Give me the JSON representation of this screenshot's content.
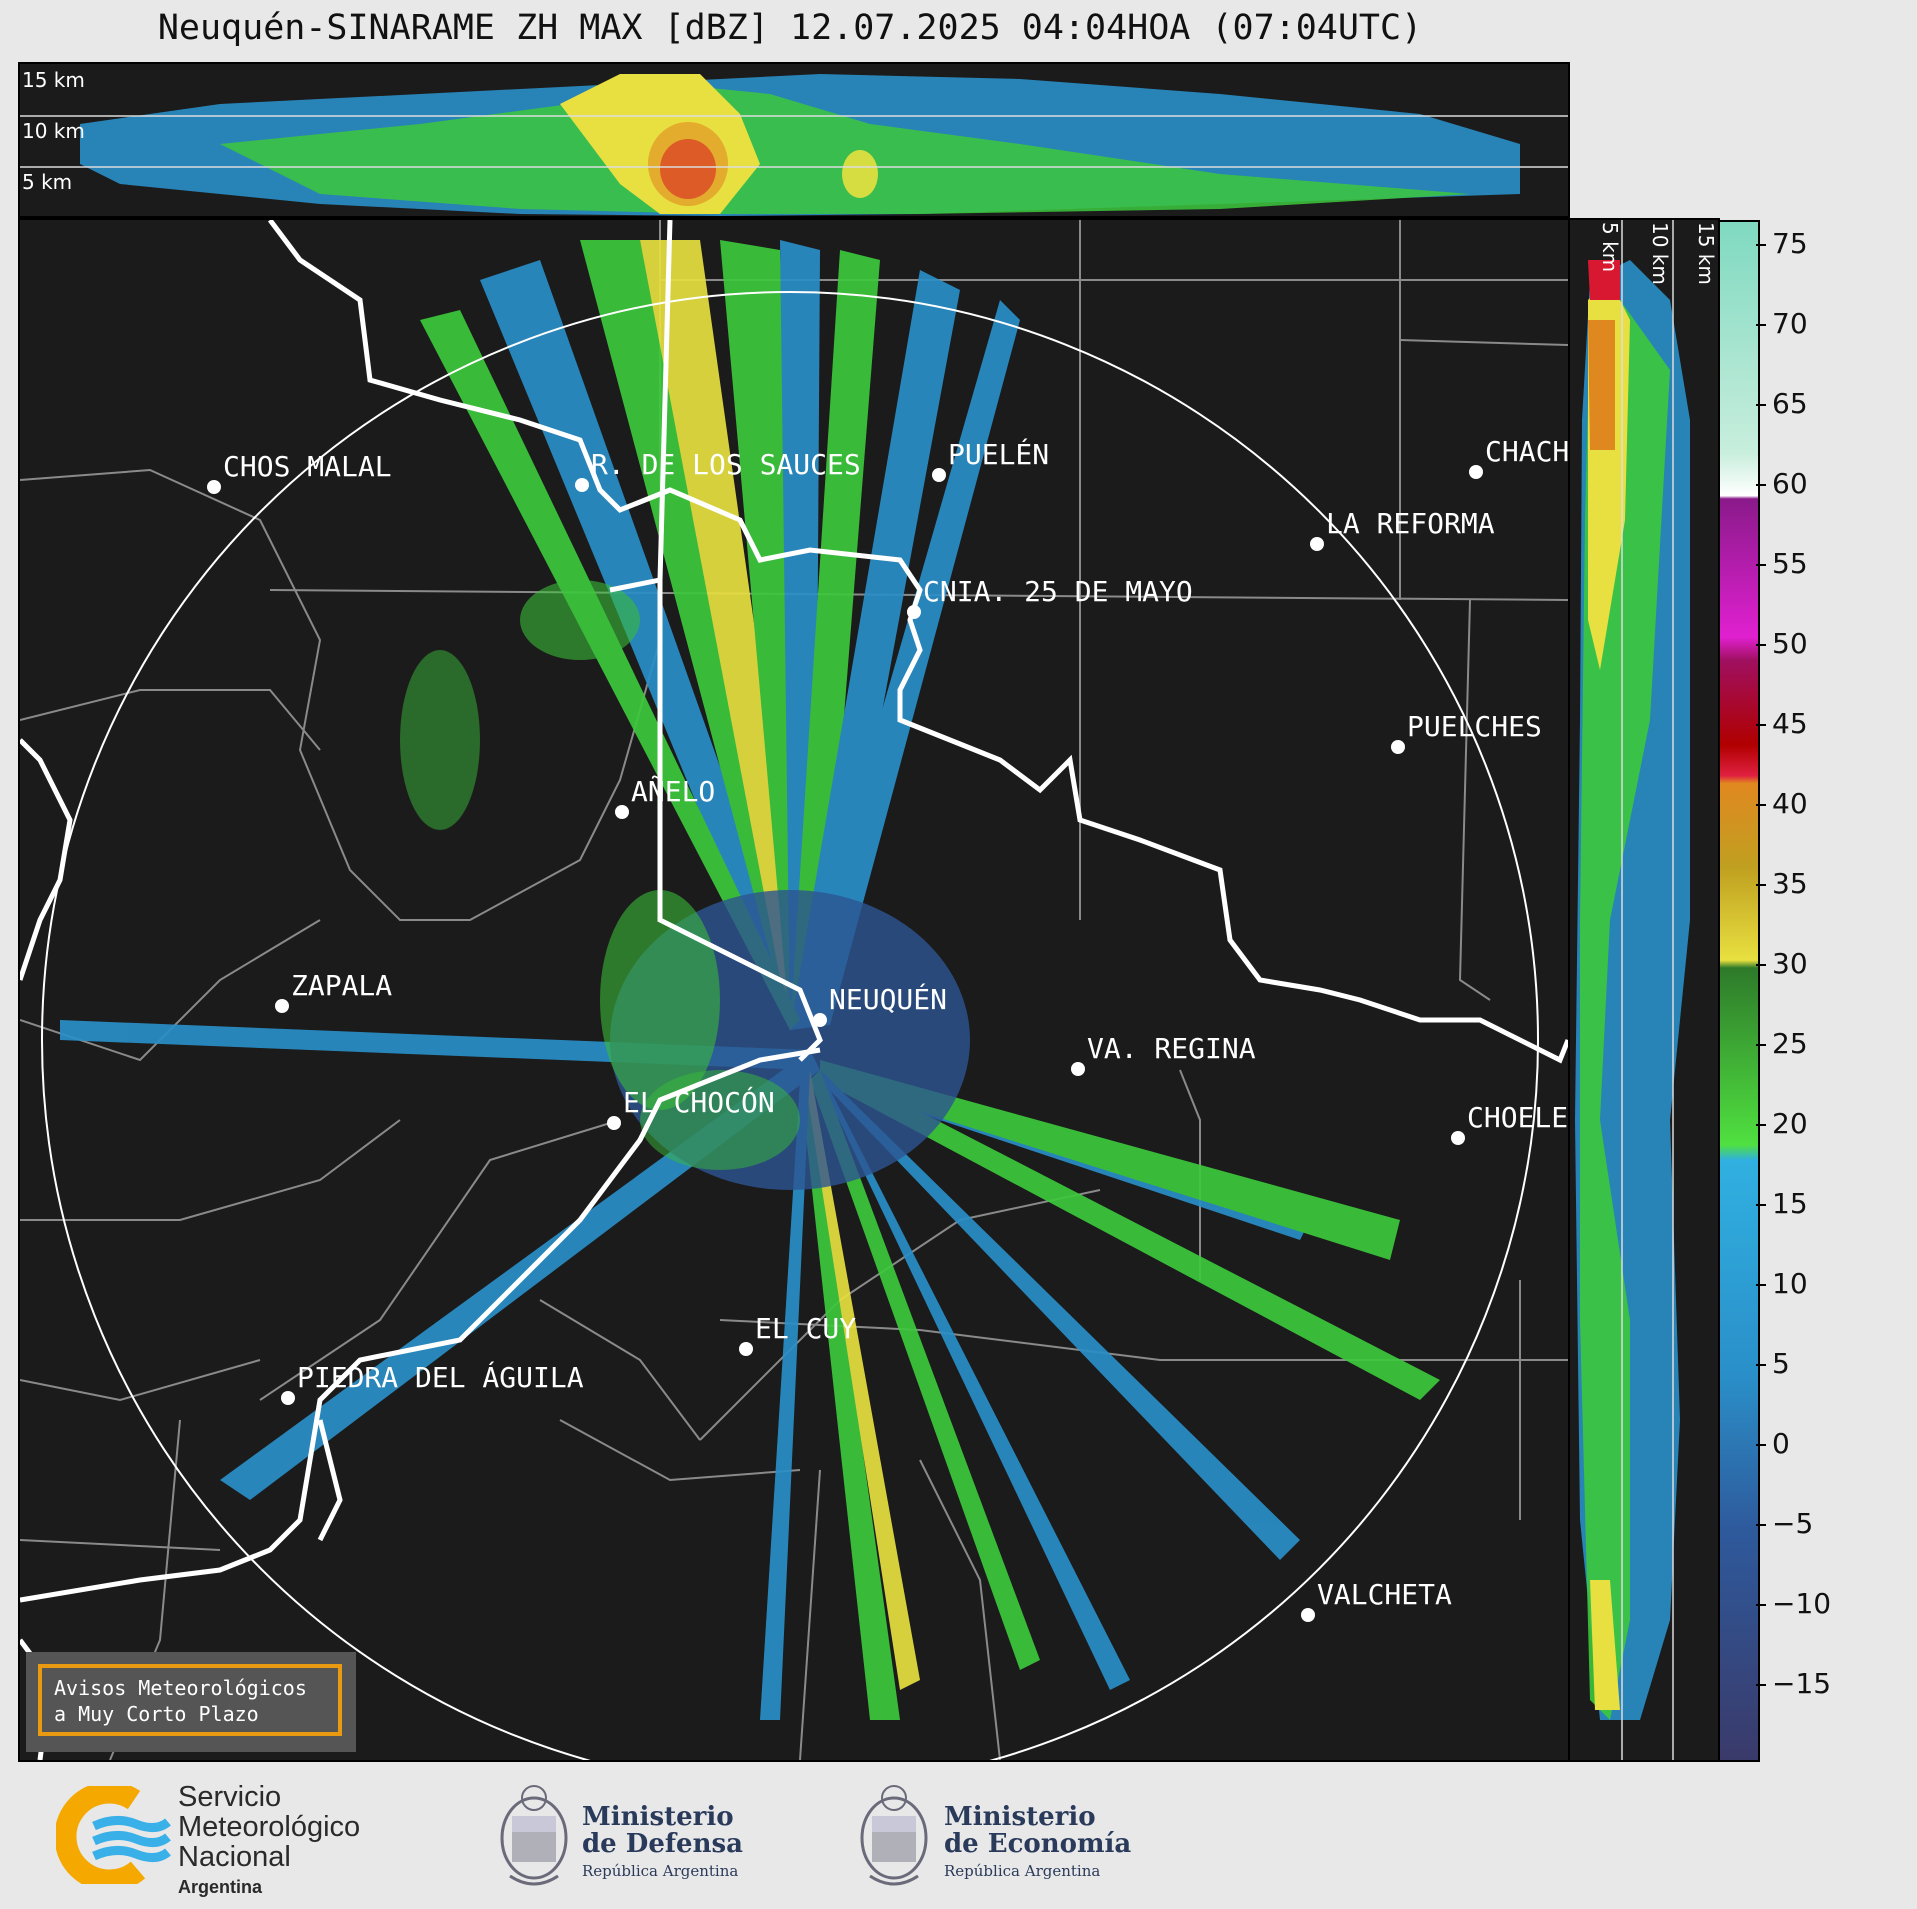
{
  "title": "Neuquén-SINARAME ZH MAX [dBZ] 12.07.2025 04:04HOA (07:04UTC)",
  "top_axis_labels": [
    "15 km",
    "10 km",
    "5 km"
  ],
  "side_axis_labels": [
    "5 km",
    "10 km",
    "15 km"
  ],
  "colorbar": {
    "ticks": [
      "75",
      "70",
      "65",
      "60",
      "55",
      "50",
      "45",
      "40",
      "35",
      "30",
      "25",
      "20",
      "15",
      "10",
      "5",
      "0",
      "−5",
      "−10",
      "−15"
    ]
  },
  "cities": [
    {
      "name": "CHOS MALAL"
    },
    {
      "name": "R. DE LOS SAUCES"
    },
    {
      "name": "PUELÉN"
    },
    {
      "name": "CHACH"
    },
    {
      "name": "LA REFORMA"
    },
    {
      "name": "CNIA. 25 DE MAYO"
    },
    {
      "name": "PUELCHES"
    },
    {
      "name": "AÑELO"
    },
    {
      "name": "ZAPALA"
    },
    {
      "name": "NEUQUÉN"
    },
    {
      "name": "VA. REGINA"
    },
    {
      "name": "EL CHOCÓN"
    },
    {
      "name": "CHOELE"
    },
    {
      "name": "EL CUY"
    },
    {
      "name": "PIEDRA DEL ÁGUILA"
    },
    {
      "name": "VALCHETA"
    }
  ],
  "avisos": {
    "line1": "Avisos Meteorológicos",
    "line2": "a Muy Corto Plazo"
  },
  "logos": {
    "smn": {
      "line1": "Servicio",
      "line2": "Meteorológico",
      "line3": "Nacional",
      "line4": "Argentina"
    },
    "defensa": {
      "line1": "Ministerio",
      "line2": "de Defensa",
      "line3": "República Argentina"
    },
    "economia": {
      "line1": "Ministerio",
      "line2": "de Economía",
      "line3": "República Argentina"
    }
  }
}
